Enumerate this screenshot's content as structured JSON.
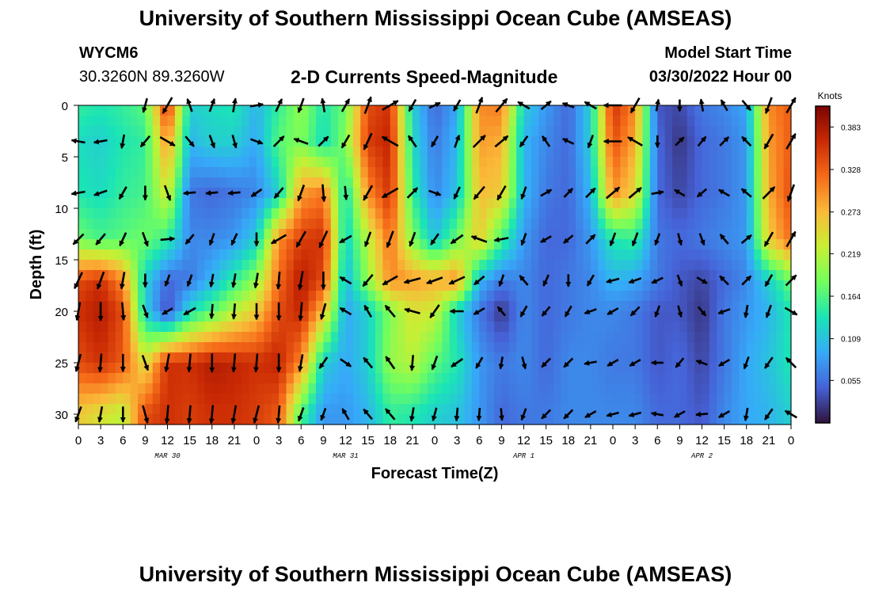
{
  "page": {
    "title": "University of Southern Mississippi Ocean Cube (AMSEAS)",
    "station": "WYCM6",
    "coords": "30.3260N  89.3260W",
    "subtitle": "2-D Currents Speed-Magnitude",
    "model_start_label": "Model Start Time",
    "model_start_value": "03/30/2022 Hour 00",
    "footer_title": "University of Southern Mississippi Ocean Cube (AMSEAS)"
  },
  "colors": {
    "speed_scale": [
      "#30123b",
      "#4662d7",
      "#36aaf9",
      "#1ae4b6",
      "#72fe5e",
      "#c8ef34",
      "#faba39",
      "#f66b19",
      "#ca2a04",
      "#7a0403"
    ]
  },
  "chart_data": {
    "type": "heatmap",
    "xlabel": "Forecast Time(Z)",
    "ylabel": "Depth (ft)",
    "x_ticks": [
      "0",
      "3",
      "6",
      "9",
      "12",
      "15",
      "18",
      "21",
      "0",
      "3",
      "6",
      "9",
      "12",
      "15",
      "18",
      "21",
      "0",
      "3",
      "6",
      "9",
      "12",
      "15",
      "18",
      "21",
      "0",
      "3",
      "6",
      "9",
      "12",
      "15",
      "18",
      "21",
      "0"
    ],
    "x_range_hours": [
      0,
      96
    ],
    "date_labels": [
      {
        "text": "MAR 30",
        "hour": 12
      },
      {
        "text": "MAR 31",
        "hour": 36
      },
      {
        "text": "APR 1",
        "hour": 60
      },
      {
        "text": "APR 2",
        "hour": 84
      }
    ],
    "y_ticks": [
      0,
      5,
      10,
      15,
      20,
      25,
      30
    ],
    "y_range_ft": [
      0,
      31
    ],
    "colorbar": {
      "label": "Knots",
      "ticks": [
        0.383,
        0.328,
        0.273,
        0.219,
        0.164,
        0.109,
        0.055
      ],
      "range": [
        0,
        0.41
      ]
    },
    "arrow_depths_ft": [
      0,
      3.5,
      8.5,
      13,
      17,
      20,
      25,
      30
    ],
    "arrow_hours": [
      0,
      3,
      6,
      9,
      12,
      15,
      18,
      21,
      24,
      27,
      30,
      33,
      36,
      39,
      42,
      45,
      48,
      51,
      54,
      57,
      60,
      63,
      66,
      69,
      72,
      75,
      78,
      81,
      84,
      87,
      90,
      93,
      96
    ],
    "speed_knots": [
      [
        0.15,
        0.14,
        0.15,
        0.17,
        0.36,
        0.12,
        0.13,
        0.14,
        0.1,
        0.15,
        0.2,
        0.14,
        0.18,
        0.34,
        0.36,
        0.12,
        0.05,
        0.09,
        0.3,
        0.31,
        0.12,
        0.08,
        0.05,
        0.12,
        0.36,
        0.3,
        0.04,
        0.03,
        0.06,
        0.07,
        0.09,
        0.3,
        0.33
      ],
      [
        0.13,
        0.12,
        0.14,
        0.15,
        0.3,
        0.1,
        0.12,
        0.12,
        0.09,
        0.17,
        0.19,
        0.13,
        0.19,
        0.35,
        0.37,
        0.13,
        0.06,
        0.1,
        0.29,
        0.28,
        0.1,
        0.07,
        0.05,
        0.12,
        0.34,
        0.28,
        0.05,
        0.02,
        0.05,
        0.06,
        0.08,
        0.29,
        0.33
      ],
      [
        0.14,
        0.13,
        0.15,
        0.16,
        0.24,
        0.06,
        0.05,
        0.06,
        0.07,
        0.12,
        0.29,
        0.31,
        0.13,
        0.3,
        0.36,
        0.15,
        0.07,
        0.11,
        0.27,
        0.26,
        0.1,
        0.06,
        0.05,
        0.1,
        0.3,
        0.25,
        0.05,
        0.03,
        0.05,
        0.06,
        0.08,
        0.28,
        0.34
      ],
      [
        0.18,
        0.16,
        0.17,
        0.18,
        0.15,
        0.07,
        0.07,
        0.08,
        0.12,
        0.3,
        0.35,
        0.36,
        0.12,
        0.22,
        0.32,
        0.19,
        0.11,
        0.18,
        0.26,
        0.16,
        0.08,
        0.05,
        0.05,
        0.08,
        0.14,
        0.15,
        0.06,
        0.05,
        0.06,
        0.07,
        0.08,
        0.26,
        0.32
      ],
      [
        0.34,
        0.36,
        0.3,
        0.12,
        0.05,
        0.06,
        0.1,
        0.15,
        0.2,
        0.32,
        0.38,
        0.34,
        0.1,
        0.2,
        0.3,
        0.29,
        0.28,
        0.3,
        0.1,
        0.06,
        0.07,
        0.05,
        0.06,
        0.07,
        0.1,
        0.09,
        0.06,
        0.04,
        0.03,
        0.05,
        0.07,
        0.12,
        0.18
      ],
      [
        0.36,
        0.38,
        0.34,
        0.12,
        0.03,
        0.13,
        0.17,
        0.22,
        0.26,
        0.34,
        0.37,
        0.27,
        0.09,
        0.12,
        0.19,
        0.24,
        0.23,
        0.12,
        0.06,
        0.02,
        0.07,
        0.05,
        0.06,
        0.07,
        0.07,
        0.06,
        0.04,
        0.04,
        0.02,
        0.06,
        0.08,
        0.1,
        0.14
      ],
      [
        0.34,
        0.36,
        0.33,
        0.24,
        0.36,
        0.36,
        0.38,
        0.37,
        0.36,
        0.37,
        0.3,
        0.12,
        0.09,
        0.12,
        0.2,
        0.22,
        0.17,
        0.14,
        0.08,
        0.06,
        0.07,
        0.05,
        0.07,
        0.07,
        0.06,
        0.06,
        0.04,
        0.05,
        0.03,
        0.06,
        0.09,
        0.11,
        0.14
      ],
      [
        0.26,
        0.24,
        0.22,
        0.34,
        0.36,
        0.35,
        0.36,
        0.36,
        0.35,
        0.33,
        0.16,
        0.08,
        0.08,
        0.1,
        0.15,
        0.14,
        0.12,
        0.11,
        0.08,
        0.05,
        0.06,
        0.06,
        0.07,
        0.07,
        0.07,
        0.07,
        0.05,
        0.05,
        0.04,
        0.07,
        0.09,
        0.1,
        0.12
      ]
    ],
    "direction_deg": [
      [
        null,
        null,
        null,
        195,
        210,
        340,
        20,
        10,
        80,
        25,
        200,
        350,
        30,
        20,
        60,
        210,
        65,
        210,
        20,
        40,
        300,
        50,
        290,
        300,
        270,
        210,
        10,
        180,
        350,
        330,
        140,
        200,
        30
      ],
      [
        280,
        260,
        190,
        220,
        120,
        140,
        160,
        165,
        110,
        45,
        290,
        45,
        210,
        205,
        300,
        325,
        210,
        20,
        45,
        50,
        215,
        325,
        295,
        200,
        270,
        300,
        180,
        45,
        40,
        45,
        315,
        210,
        30
      ],
      [
        260,
        250,
        210,
        180,
        160,
        265,
        265,
        265,
        235,
        220,
        200,
        175,
        175,
        210,
        240,
        45,
        110,
        205,
        220,
        210,
        200,
        60,
        45,
        45,
        50,
        50,
        80,
        300,
        230,
        300,
        310,
        45,
        200
      ],
      [
        225,
        220,
        205,
        160,
        85,
        220,
        200,
        205,
        180,
        240,
        210,
        205,
        240,
        200,
        200,
        200,
        215,
        235,
        290,
        260,
        200,
        240,
        230,
        45,
        200,
        200,
        200,
        165,
        160,
        320,
        50,
        210,
        30
      ],
      [
        205,
        200,
        190,
        180,
        200,
        200,
        190,
        190,
        190,
        185,
        190,
        180,
        300,
        220,
        240,
        255,
        250,
        245,
        230,
        200,
        320,
        205,
        180,
        210,
        255,
        250,
        245,
        160,
        120,
        315,
        45,
        210,
        45
      ],
      [
        190,
        180,
        175,
        160,
        240,
        240,
        185,
        185,
        180,
        180,
        185,
        195,
        300,
        330,
        320,
        285,
        215,
        270,
        240,
        320,
        210,
        220,
        210,
        250,
        240,
        225,
        200,
        165,
        140,
        250,
        190,
        200,
        120
      ],
      [
        195,
        185,
        180,
        160,
        190,
        185,
        180,
        185,
        185,
        180,
        190,
        215,
        125,
        320,
        325,
        185,
        200,
        235,
        210,
        190,
        165,
        225,
        225,
        260,
        240,
        240,
        270,
        220,
        290,
        240,
        200,
        215,
        315
      ],
      [
        200,
        190,
        180,
        165,
        185,
        185,
        185,
        190,
        195,
        185,
        200,
        200,
        330,
        320,
        320,
        190,
        195,
        185,
        185,
        175,
        200,
        225,
        225,
        240,
        255,
        255,
        280,
        240,
        265,
        240,
        190,
        215,
        300
      ]
    ]
  }
}
